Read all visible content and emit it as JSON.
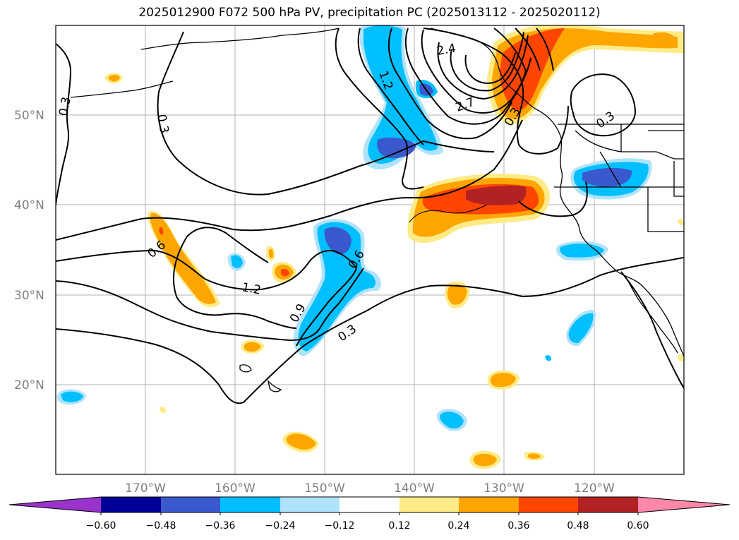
{
  "title": "2025012900 F072 500 hPa PV, precipitation PC (2025013112 - 2025020112)",
  "map": {
    "lon_range": [
      -180,
      -110
    ],
    "lat_range": [
      10,
      60
    ],
    "lat_ticks": [
      {
        "value": 50,
        "label": "50°N"
      },
      {
        "value": 40,
        "label": "40°N"
      },
      {
        "value": 30,
        "label": "30°N"
      },
      {
        "value": 20,
        "label": "20°N"
      }
    ],
    "lon_ticks": [
      {
        "value": -170,
        "label": "170°W"
      },
      {
        "value": -160,
        "label": "160°W"
      },
      {
        "value": -150,
        "label": "150°W"
      },
      {
        "value": -140,
        "label": "140°W"
      },
      {
        "value": -130,
        "label": "130°W"
      },
      {
        "value": -120,
        "label": "120°W"
      }
    ],
    "contour_labels": [
      "0.3",
      "0.3",
      "0.6",
      "1.2",
      "0.9",
      "0.6",
      "0.3",
      "1.2",
      "2.4",
      "2.7",
      "0.3",
      "0.3"
    ]
  },
  "colorbar": {
    "extend": "both",
    "bins": [
      {
        "color": "#9933cc"
      },
      {
        "color": "#000099"
      },
      {
        "color": "#3a59cc"
      },
      {
        "color": "#00bfff"
      },
      {
        "color": "#afe2fb"
      },
      {
        "color": "#ffffff"
      },
      {
        "color": "#ffeb85"
      },
      {
        "color": "#ffa500"
      },
      {
        "color": "#ff4500"
      },
      {
        "color": "#b22222"
      },
      {
        "color": "#ff88aa"
      }
    ],
    "tick_labels": [
      "−0.60",
      "−0.48",
      "−0.36",
      "−0.24",
      "−0.12",
      "0.12",
      "0.24",
      "0.36",
      "0.48",
      "0.60"
    ]
  }
}
